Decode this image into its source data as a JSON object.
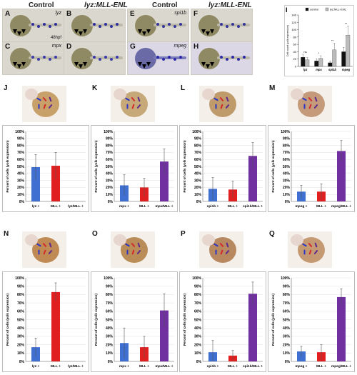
{
  "header": {
    "control_1": "Control",
    "mll_1": "lyz:MLL-ENL",
    "control_2": "Control",
    "mll_2": "lyz:MLL-ENL"
  },
  "micro_panels": [
    {
      "letter": "A",
      "label": "lyz",
      "extra": "",
      "stain": "#2d2da0"
    },
    {
      "letter": "B",
      "label": "",
      "extra": "",
      "stain": "#2d2da0"
    },
    {
      "letter": "C",
      "label": "mpx",
      "extra": "",
      "stain": "#3a3aa8"
    },
    {
      "letter": "D",
      "label": "",
      "extra": "",
      "stain": "#3a3aa8"
    },
    {
      "letter": "E",
      "label": "spi1b",
      "extra": "",
      "stain": "#34349a"
    },
    {
      "letter": "F",
      "label": "",
      "extra": "",
      "stain": "#34349a"
    },
    {
      "letter": "G",
      "label": "mpeg",
      "extra": "",
      "stain": "#2b2ba8"
    },
    {
      "letter": "H",
      "label": "",
      "extra": "",
      "stain": "#2b2ba8"
    }
  ],
  "stage_label": "48hpf",
  "panel_I": {
    "letter": "I",
    "legend": [
      "control",
      "lyz:MLL-ENL"
    ],
    "ylabel": "Cell count (yolk expression)",
    "significance": [
      "ns",
      "*",
      "**",
      "**"
    ]
  },
  "chart_data": [
    {
      "type": "bar",
      "panel": "I",
      "categories": [
        "lyz",
        "mpx",
        "spi1b",
        "mpeg"
      ],
      "series": [
        {
          "name": "control",
          "values": [
            25,
            15,
            10,
            40
          ]
        },
        {
          "name": "lyz:MLL-ENL",
          "values": [
            18,
            22,
            45,
            85
          ]
        }
      ],
      "errors": [
        [
          8,
          6,
          5,
          12
        ],
        [
          6,
          7,
          18,
          25
        ]
      ],
      "ylim": [
        0,
        140
      ],
      "yticks": [
        0,
        20,
        40,
        60,
        80,
        100,
        120,
        140
      ],
      "colors": [
        "#111111",
        "#bbbbbb"
      ]
    },
    {
      "type": "bar",
      "panel": "J",
      "categories": [
        "lyz +",
        "MLL +",
        "lyz/MLL +"
      ],
      "values": [
        49,
        51,
        0
      ],
      "errors": [
        18,
        19,
        0
      ],
      "colors": [
        "#3f6fd0",
        "#e02020",
        "#7030a0"
      ],
      "ylabel": "Percent of cells (yolk expression)",
      "ylim": [
        0,
        100
      ]
    },
    {
      "type": "bar",
      "panel": "K",
      "categories": [
        "mpx +",
        "MLL +",
        "mpx/MLL +"
      ],
      "values": [
        23,
        20,
        57
      ],
      "errors": [
        15,
        13,
        18
      ],
      "colors": [
        "#3f6fd0",
        "#e02020",
        "#7030a0"
      ],
      "ylabel": "Percent of cells (yolk expression)",
      "ylim": [
        0,
        100
      ]
    },
    {
      "type": "bar",
      "panel": "L",
      "categories": [
        "spi1b +",
        "MLL +",
        "spi1b/MLL +"
      ],
      "values": [
        18,
        17,
        65
      ],
      "errors": [
        16,
        12,
        19
      ],
      "colors": [
        "#3f6fd0",
        "#e02020",
        "#7030a0"
      ],
      "ylabel": "Percent of cells (yolk expression)",
      "ylim": [
        0,
        100
      ]
    },
    {
      "type": "bar",
      "panel": "M",
      "categories": [
        "mpeg +",
        "MLL +",
        "mpeg/MLL +"
      ],
      "values": [
        14,
        14,
        72
      ],
      "errors": [
        9,
        11,
        15
      ],
      "colors": [
        "#3f6fd0",
        "#e02020",
        "#7030a0"
      ],
      "ylabel": "Percent of cells (yolk expression)",
      "ylim": [
        0,
        100
      ]
    },
    {
      "type": "bar",
      "panel": "N",
      "categories": [
        "lyz +",
        "MLL +",
        "lyz/MLL +"
      ],
      "values": [
        17,
        83,
        0
      ],
      "errors": [
        11,
        11,
        0
      ],
      "colors": [
        "#3f6fd0",
        "#e02020",
        "#7030a0"
      ],
      "ylabel": "Percent of cells (yolk expression)",
      "ylim": [
        0,
        100
      ]
    },
    {
      "type": "bar",
      "panel": "O",
      "categories": [
        "mpx +",
        "MLL +",
        "mpx/MLL +"
      ],
      "values": [
        22,
        17,
        61
      ],
      "errors": [
        18,
        13,
        20
      ],
      "colors": [
        "#3f6fd0",
        "#e02020",
        "#7030a0"
      ],
      "ylabel": "Percent of cells (yolk expression)",
      "ylim": [
        0,
        100
      ]
    },
    {
      "type": "bar",
      "panel": "P",
      "categories": [
        "spi1b +",
        "MLL +",
        "spi1b/MLL +"
      ],
      "values": [
        11,
        7,
        81
      ],
      "errors": [
        14,
        6,
        14
      ],
      "colors": [
        "#3f6fd0",
        "#e02020",
        "#7030a0"
      ],
      "ylabel": "Percent of cells (yolk expression)",
      "ylim": [
        0,
        100
      ]
    },
    {
      "type": "bar",
      "panel": "Q",
      "categories": [
        "mpeg +",
        "MLL +",
        "mpeg/MLL +"
      ],
      "values": [
        12,
        11,
        77
      ],
      "errors": [
        6,
        9,
        10
      ],
      "colors": [
        "#3f6fd0",
        "#e02020",
        "#7030a0"
      ],
      "ylabel": "Percent of cells (yolk expression)",
      "ylim": [
        0,
        100
      ]
    }
  ],
  "photo_panels": [
    "J",
    "K",
    "L",
    "M",
    "N",
    "O",
    "P",
    "Q"
  ]
}
